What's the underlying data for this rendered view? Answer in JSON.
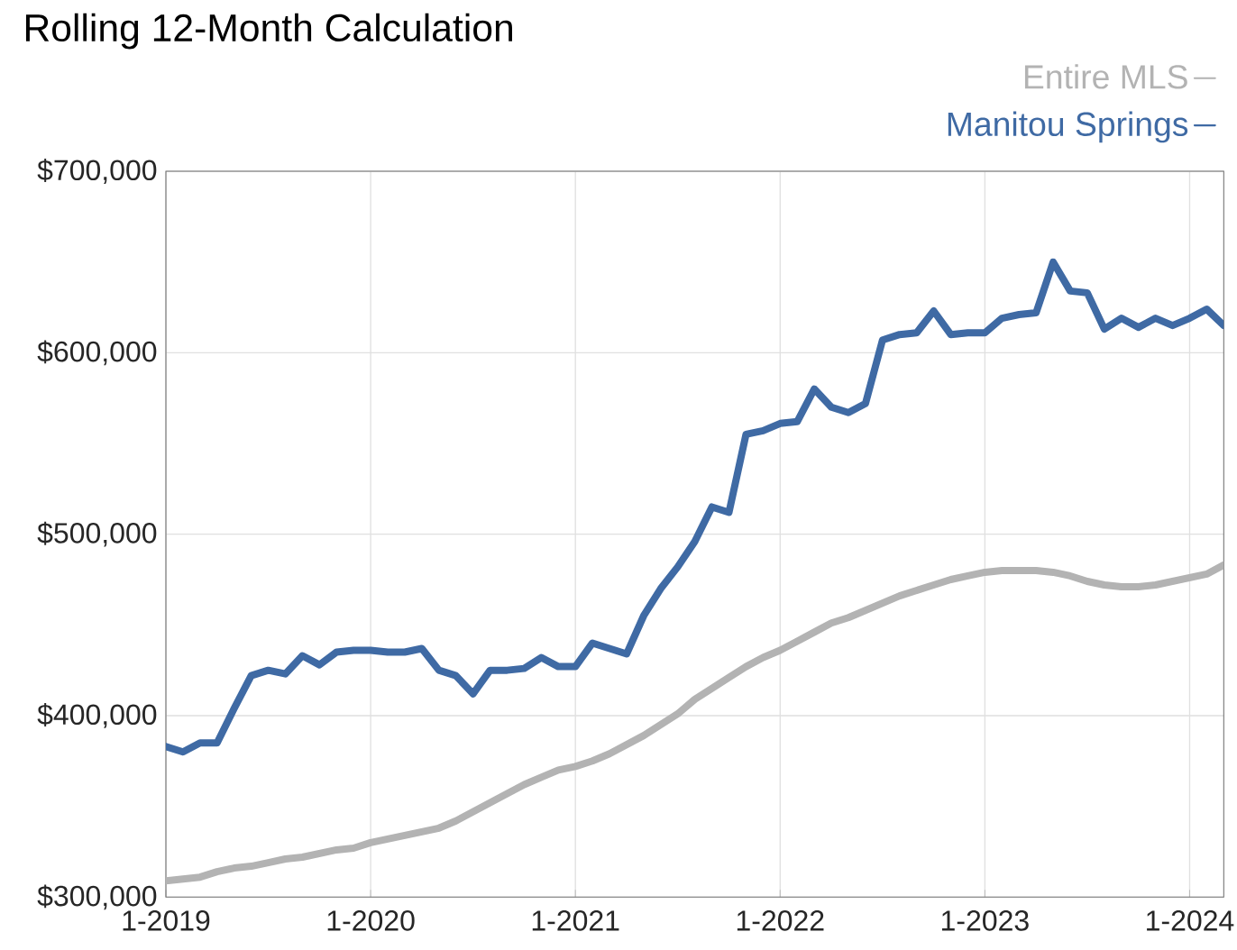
{
  "chart_data": {
    "type": "line",
    "title": "Rolling 12-Month Calculation",
    "x": [
      "2019-01",
      "2019-02",
      "2019-03",
      "2019-04",
      "2019-05",
      "2019-06",
      "2019-07",
      "2019-08",
      "2019-09",
      "2019-10",
      "2019-11",
      "2019-12",
      "2020-01",
      "2020-02",
      "2020-03",
      "2020-04",
      "2020-05",
      "2020-06",
      "2020-07",
      "2020-08",
      "2020-09",
      "2020-10",
      "2020-11",
      "2020-12",
      "2021-01",
      "2021-02",
      "2021-03",
      "2021-04",
      "2021-05",
      "2021-06",
      "2021-07",
      "2021-08",
      "2021-09",
      "2021-10",
      "2021-11",
      "2021-12",
      "2022-01",
      "2022-02",
      "2022-03",
      "2022-04",
      "2022-05",
      "2022-06",
      "2022-07",
      "2022-08",
      "2022-09",
      "2022-10",
      "2022-11",
      "2022-12",
      "2023-01",
      "2023-02",
      "2023-03",
      "2023-04",
      "2023-05",
      "2023-06",
      "2023-07",
      "2023-08",
      "2023-09",
      "2023-10",
      "2023-11",
      "2023-12",
      "2024-01",
      "2024-02",
      "2024-03"
    ],
    "series": [
      {
        "name": "Entire MLS",
        "color": "#b3b3b3",
        "values": [
          309000,
          310000,
          311000,
          314000,
          316000,
          317000,
          319000,
          321000,
          322000,
          324000,
          326000,
          327000,
          330000,
          332000,
          334000,
          336000,
          338000,
          342000,
          347000,
          352000,
          357000,
          362000,
          366000,
          370000,
          372000,
          375000,
          379000,
          384000,
          389000,
          395000,
          401000,
          409000,
          415000,
          421000,
          427000,
          432000,
          436000,
          441000,
          446000,
          451000,
          454000,
          458000,
          462000,
          466000,
          469000,
          472000,
          475000,
          477000,
          479000,
          480000,
          480000,
          480000,
          479000,
          477000,
          474000,
          472000,
          471000,
          471000,
          472000,
          474000,
          476000,
          478000,
          483000
        ]
      },
      {
        "name": "Manitou Springs",
        "color": "#3f6aa4",
        "values": [
          383000,
          380000,
          385000,
          385000,
          404000,
          422000,
          425000,
          423000,
          433000,
          428000,
          435000,
          436000,
          436000,
          435000,
          435000,
          437000,
          425000,
          422000,
          412000,
          425000,
          425000,
          426000,
          432000,
          427000,
          427000,
          440000,
          437000,
          434000,
          455000,
          470000,
          482000,
          496000,
          515000,
          512000,
          555000,
          557000,
          561000,
          562000,
          580000,
          570000,
          567000,
          572000,
          607000,
          610000,
          611000,
          623000,
          610000,
          611000,
          611000,
          619000,
          621000,
          622000,
          650000,
          634000,
          633000,
          613000,
          619000,
          614000,
          619000,
          615000,
          619000,
          624000,
          615000
        ]
      }
    ],
    "xlim": [
      "2019-01",
      "2024-03"
    ],
    "xticks": [
      {
        "value": "2019-01",
        "label": "1-2019"
      },
      {
        "value": "2020-01",
        "label": "1-2020"
      },
      {
        "value": "2021-01",
        "label": "1-2021"
      },
      {
        "value": "2022-01",
        "label": "1-2022"
      },
      {
        "value": "2023-01",
        "label": "1-2023"
      },
      {
        "value": "2024-01",
        "label": "1-2024"
      }
    ],
    "ylim": [
      300000,
      700000
    ],
    "yticks": [
      {
        "value": 300000,
        "label": "$300,000"
      },
      {
        "value": 400000,
        "label": "$400,000"
      },
      {
        "value": 500000,
        "label": "$500,000"
      },
      {
        "value": 600000,
        "label": "$600,000"
      },
      {
        "value": 700000,
        "label": "$700,000"
      }
    ],
    "grid": true,
    "legend": "top right",
    "line_style": "solid",
    "marker": "none"
  }
}
